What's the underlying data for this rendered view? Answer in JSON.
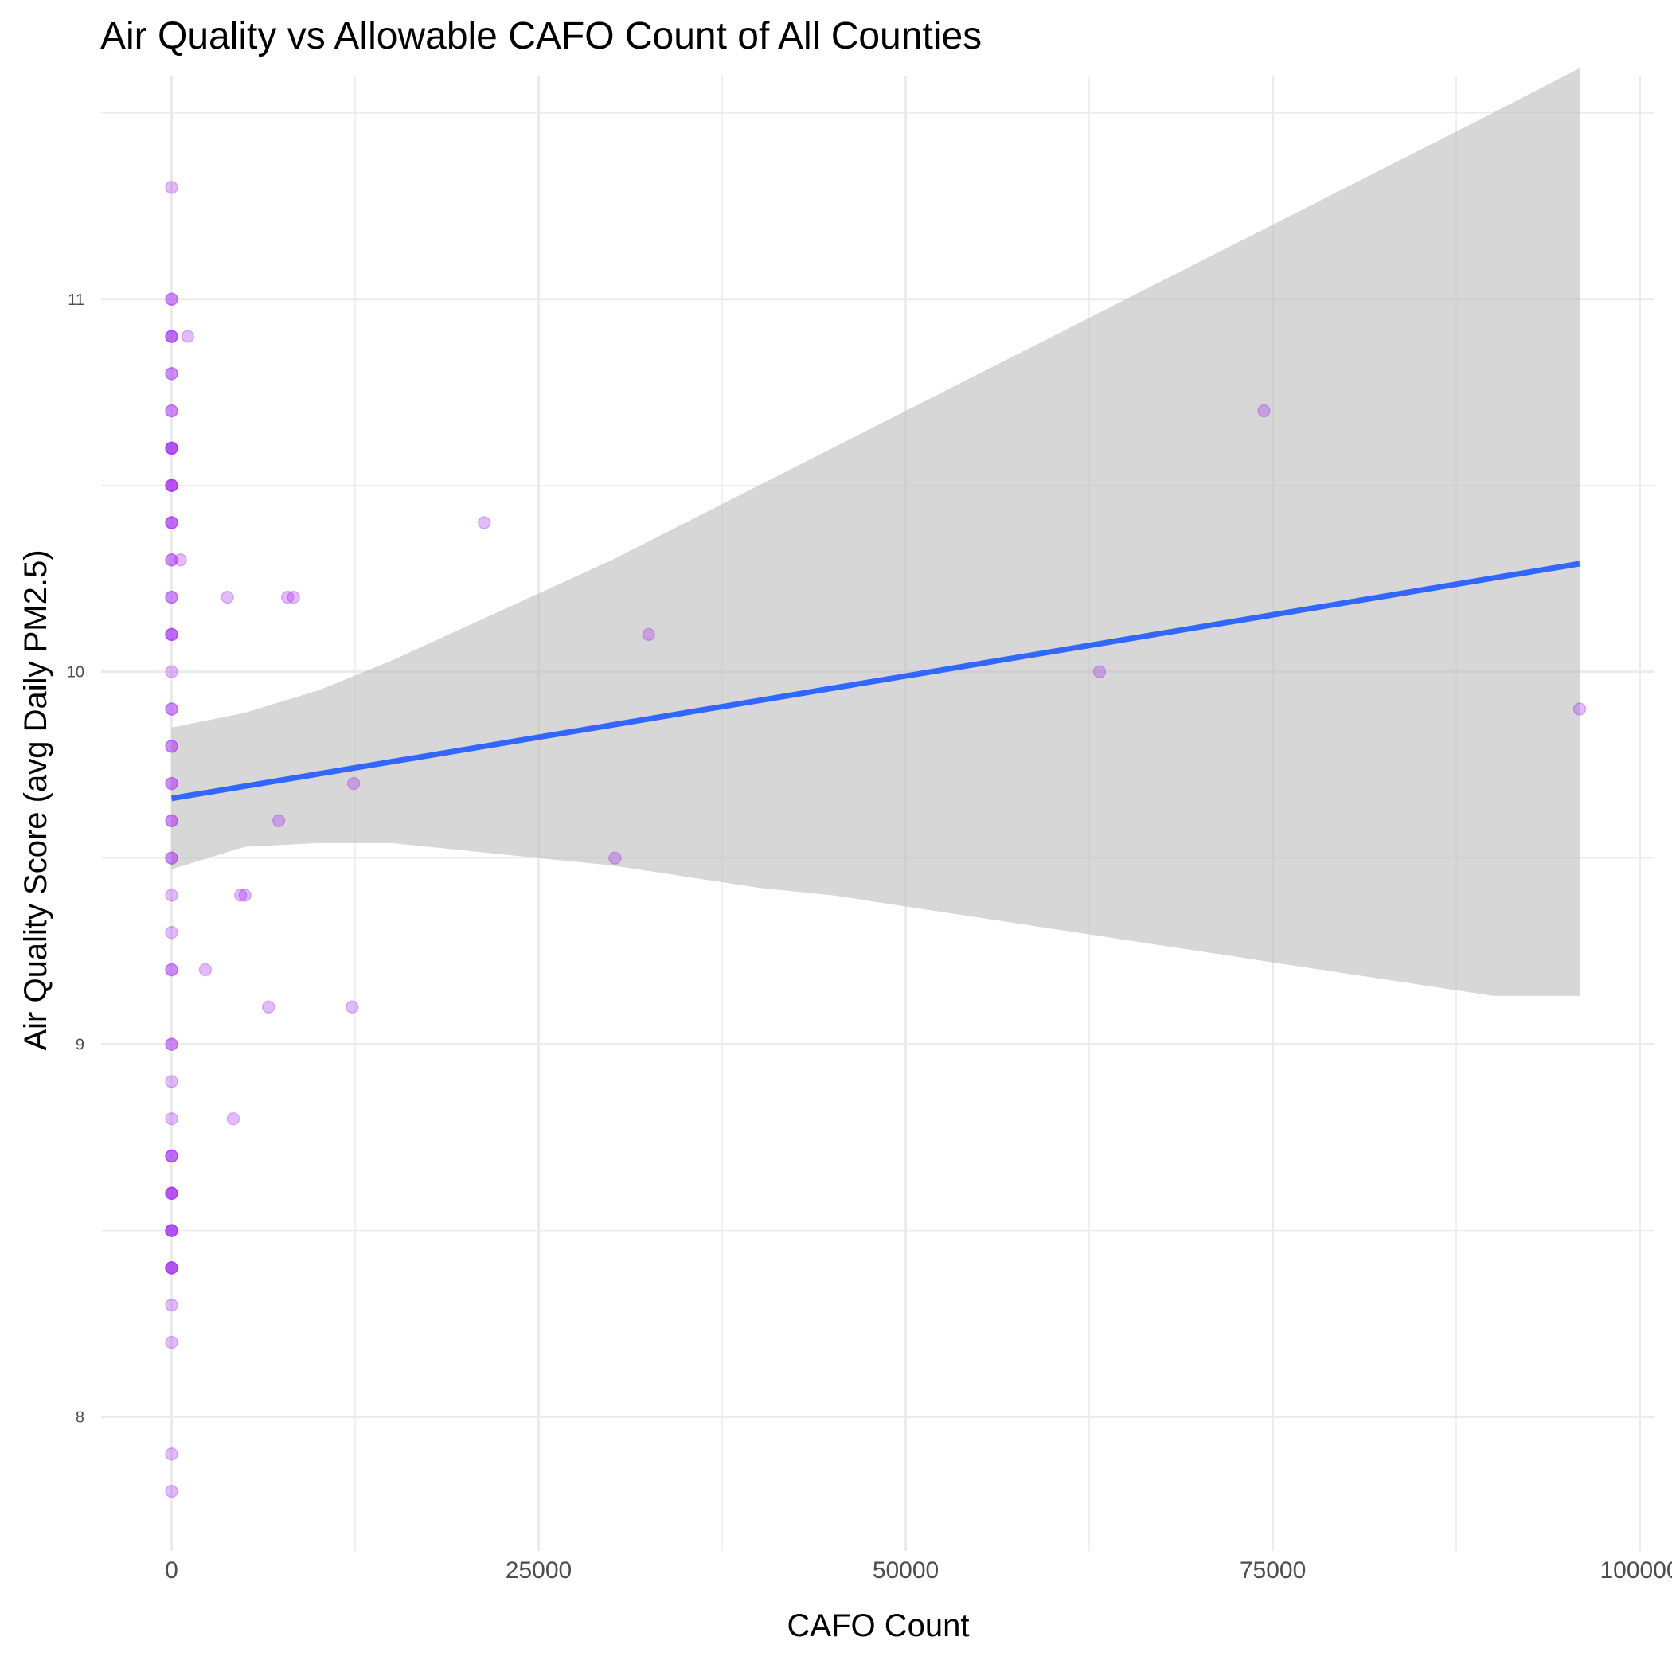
{
  "chart_data": {
    "type": "scatter",
    "title": "Air Quality vs Allowable CAFO Count of All Counties",
    "xlabel": "CAFO Count",
    "ylabel": "Air Quality Score (avg Daily PM2.5)",
    "xlim": [
      -4800,
      101000
    ],
    "ylim": [
      7.64,
      11.6
    ],
    "x_ticks": [
      0,
      25000,
      50000,
      75000,
      100000
    ],
    "x_tick_labels": [
      "0",
      "25000",
      "50000",
      "75000",
      "100000"
    ],
    "y_ticks": [
      8,
      9,
      10,
      11
    ],
    "y_tick_labels": [
      "8",
      "9",
      "10",
      "11"
    ],
    "grid": true,
    "legend": "none",
    "point_color": "#a020f0",
    "point_alpha": 0.3,
    "points": [
      {
        "x": 0,
        "y": 11.3
      },
      {
        "x": 0,
        "y": 11.0
      },
      {
        "x": 0,
        "y": 11.0
      },
      {
        "x": 0,
        "y": 10.9
      },
      {
        "x": 0,
        "y": 10.9
      },
      {
        "x": 0,
        "y": 10.9
      },
      {
        "x": 0,
        "y": 10.8
      },
      {
        "x": 0,
        "y": 10.8
      },
      {
        "x": 0,
        "y": 10.7
      },
      {
        "x": 0,
        "y": 10.7
      },
      {
        "x": 0,
        "y": 10.6
      },
      {
        "x": 0,
        "y": 10.6
      },
      {
        "x": 0,
        "y": 10.6
      },
      {
        "x": 0,
        "y": 10.6
      },
      {
        "x": 0,
        "y": 10.5
      },
      {
        "x": 0,
        "y": 10.5
      },
      {
        "x": 0,
        "y": 10.5
      },
      {
        "x": 0,
        "y": 10.5
      },
      {
        "x": 0,
        "y": 10.4
      },
      {
        "x": 0,
        "y": 10.4
      },
      {
        "x": 0,
        "y": 10.4
      },
      {
        "x": 0,
        "y": 10.3
      },
      {
        "x": 0,
        "y": 10.3
      },
      {
        "x": 0,
        "y": 10.2
      },
      {
        "x": 0,
        "y": 10.2
      },
      {
        "x": 0,
        "y": 10.1
      },
      {
        "x": 0,
        "y": 10.1
      },
      {
        "x": 0,
        "y": 10.1
      },
      {
        "x": 0,
        "y": 10.0
      },
      {
        "x": 0,
        "y": 9.9
      },
      {
        "x": 0,
        "y": 9.9
      },
      {
        "x": 0,
        "y": 9.8
      },
      {
        "x": 0,
        "y": 9.8
      },
      {
        "x": 0,
        "y": 9.7
      },
      {
        "x": 0,
        "y": 9.7
      },
      {
        "x": 0,
        "y": 9.6
      },
      {
        "x": 0,
        "y": 9.6
      },
      {
        "x": 0,
        "y": 9.5
      },
      {
        "x": 0,
        "y": 9.5
      },
      {
        "x": 0,
        "y": 9.4
      },
      {
        "x": 0,
        "y": 9.3
      },
      {
        "x": 0,
        "y": 9.2
      },
      {
        "x": 0,
        "y": 9.2
      },
      {
        "x": 0,
        "y": 9.0
      },
      {
        "x": 0,
        "y": 9.0
      },
      {
        "x": 0,
        "y": 8.9
      },
      {
        "x": 0,
        "y": 8.8
      },
      {
        "x": 0,
        "y": 8.7
      },
      {
        "x": 0,
        "y": 8.7
      },
      {
        "x": 0,
        "y": 8.7
      },
      {
        "x": 0,
        "y": 8.6
      },
      {
        "x": 0,
        "y": 8.6
      },
      {
        "x": 0,
        "y": 8.6
      },
      {
        "x": 0,
        "y": 8.6
      },
      {
        "x": 0,
        "y": 8.5
      },
      {
        "x": 0,
        "y": 8.5
      },
      {
        "x": 0,
        "y": 8.5
      },
      {
        "x": 0,
        "y": 8.5
      },
      {
        "x": 0,
        "y": 8.4
      },
      {
        "x": 0,
        "y": 8.4
      },
      {
        "x": 0,
        "y": 8.4
      },
      {
        "x": 0,
        "y": 8.4
      },
      {
        "x": 0,
        "y": 8.3
      },
      {
        "x": 0,
        "y": 8.2
      },
      {
        "x": 0,
        "y": 7.9
      },
      {
        "x": 0,
        "y": 7.8
      },
      {
        "x": 1100,
        "y": 10.9
      },
      {
        "x": 600,
        "y": 10.3
      },
      {
        "x": 3800,
        "y": 10.2
      },
      {
        "x": 7900,
        "y": 10.2
      },
      {
        "x": 8300,
        "y": 10.2
      },
      {
        "x": 21300,
        "y": 10.4
      },
      {
        "x": 32500,
        "y": 10.1
      },
      {
        "x": 74400,
        "y": 10.7
      },
      {
        "x": 63200,
        "y": 10.0
      },
      {
        "x": 95900,
        "y": 9.9
      },
      {
        "x": 12400,
        "y": 9.7
      },
      {
        "x": 7300,
        "y": 9.6
      },
      {
        "x": 30200,
        "y": 9.5
      },
      {
        "x": 4700,
        "y": 9.4
      },
      {
        "x": 5000,
        "y": 9.4
      },
      {
        "x": 2300,
        "y": 9.2
      },
      {
        "x": 6600,
        "y": 9.1
      },
      {
        "x": 12300,
        "y": 9.1
      },
      {
        "x": 4200,
        "y": 8.8
      }
    ],
    "trend_line": {
      "color": "#3366ff",
      "x": [
        0,
        95900
      ],
      "y": [
        9.66,
        10.29
      ]
    },
    "confidence_band": {
      "color": "#bfbfbf",
      "x": [
        0,
        5000,
        10000,
        15000,
        20000,
        25000,
        30000,
        35000,
        40000,
        45000,
        50000,
        55000,
        60000,
        65000,
        70000,
        75000,
        80000,
        85000,
        90000,
        95900
      ],
      "upper": [
        9.85,
        9.89,
        9.95,
        10.03,
        10.12,
        10.21,
        10.3,
        10.4,
        10.5,
        10.6,
        10.7,
        10.8,
        10.9,
        11.0,
        11.1,
        11.2,
        11.3,
        11.4,
        11.5,
        11.62
      ],
      "lower": [
        9.47,
        9.53,
        9.54,
        9.54,
        9.52,
        9.5,
        9.48,
        9.45,
        9.42,
        9.4,
        9.37,
        9.34,
        9.31,
        9.28,
        9.25,
        9.22,
        9.19,
        9.16,
        9.13,
        9.13
      ]
    }
  }
}
